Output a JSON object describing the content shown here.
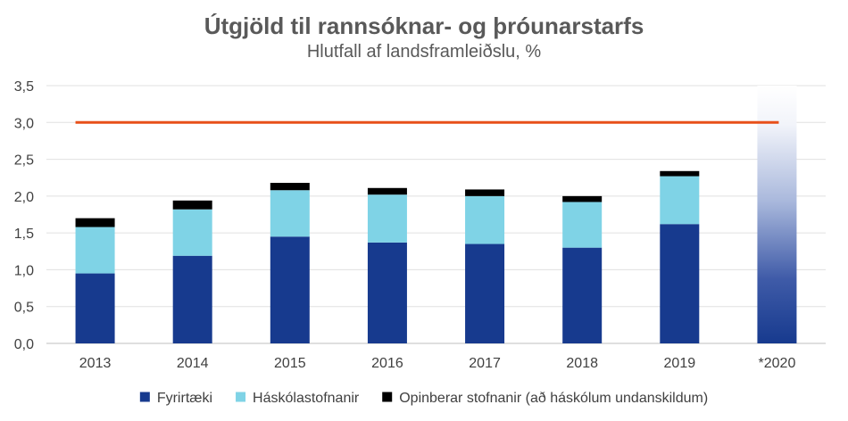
{
  "chart_data": {
    "type": "bar",
    "stacked": true,
    "title": "Útgjöld til rannsóknar- og þróunarstarfs",
    "subtitle": "Hlutfall af landsframleiðslu, %",
    "categories": [
      "2013",
      "2014",
      "2015",
      "2016",
      "2017",
      "2018",
      "2019",
      "*2020"
    ],
    "series": [
      {
        "name": "Fyrirtæki",
        "color": "#173A8E",
        "values": [
          0.95,
          1.19,
          1.45,
          1.37,
          1.35,
          1.3,
          1.62,
          null
        ]
      },
      {
        "name": "Háskólastofnanir",
        "color": "#7FD3E6",
        "values": [
          0.63,
          0.63,
          0.63,
          0.65,
          0.65,
          0.62,
          0.65,
          null
        ]
      },
      {
        "name": "Opinberar stofnanir (að háskólum undanskildum)",
        "color": "#000000",
        "values": [
          0.12,
          0.12,
          0.1,
          0.09,
          0.09,
          0.08,
          0.07,
          null
        ]
      }
    ],
    "estimate_2020": {
      "category": "*2020",
      "total": 3.5,
      "style": "gradient"
    },
    "target_line": {
      "value": 3.0,
      "color": "#E8501A"
    },
    "ylim": [
      0,
      3.5
    ],
    "yticks": [
      "0,0",
      "0,5",
      "1,0",
      "1,5",
      "2,0",
      "2,5",
      "3,0",
      "3,5"
    ],
    "grid": true,
    "legend_position": "bottom"
  }
}
